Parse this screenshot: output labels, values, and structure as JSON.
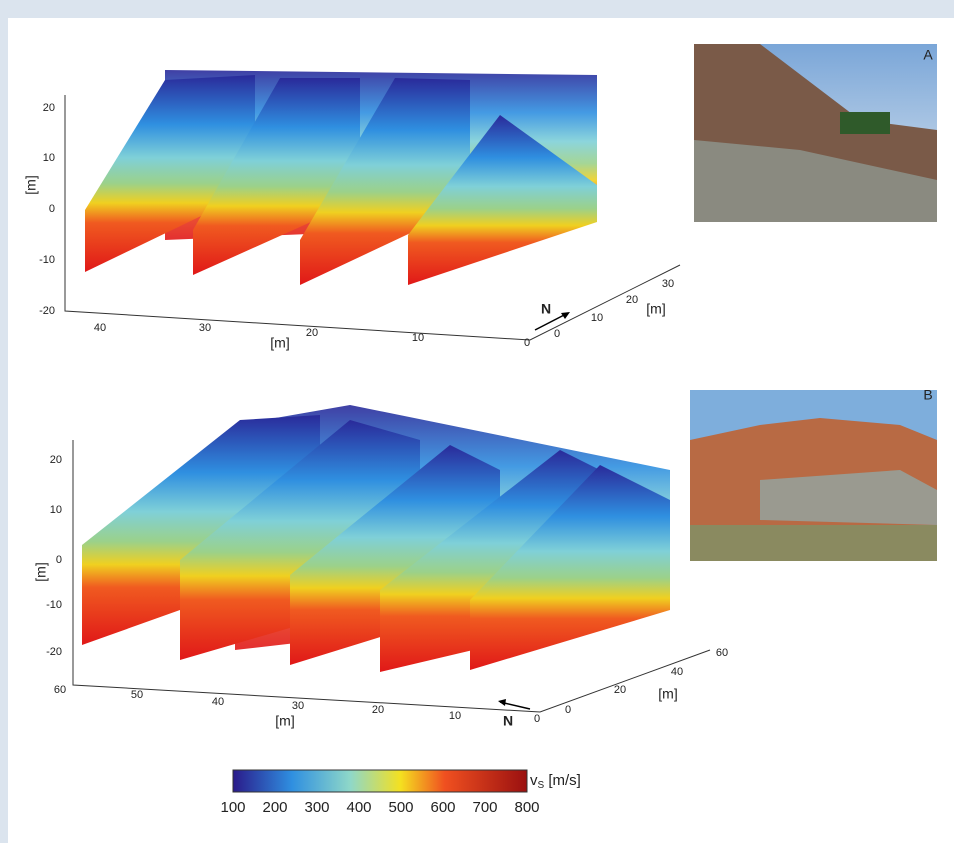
{
  "panels": [
    {
      "letter": "A",
      "z_label": "[m]",
      "z_ticks": [
        20,
        10,
        0,
        -10,
        -20
      ],
      "x_label": "[m]",
      "x_ticks": [
        40,
        30,
        20,
        10,
        0
      ],
      "y_label": "[m]",
      "y_ticks": [
        0,
        10,
        20,
        30
      ],
      "north": "N"
    },
    {
      "letter": "B",
      "z_label": "[m]",
      "z_ticks": [
        20,
        10,
        0,
        -10,
        -20
      ],
      "x_label": "[m]",
      "x_ticks": [
        60,
        50,
        40,
        30,
        20,
        10,
        0
      ],
      "y_label": "[m]",
      "y_ticks": [
        0,
        20,
        40,
        60
      ],
      "north": "N"
    }
  ],
  "colorbar": {
    "label": "v",
    "label_sub": "S",
    "label_unit": "[m/s]",
    "ticks": [
      100,
      200,
      300,
      400,
      500,
      600,
      700,
      800
    ]
  }
}
